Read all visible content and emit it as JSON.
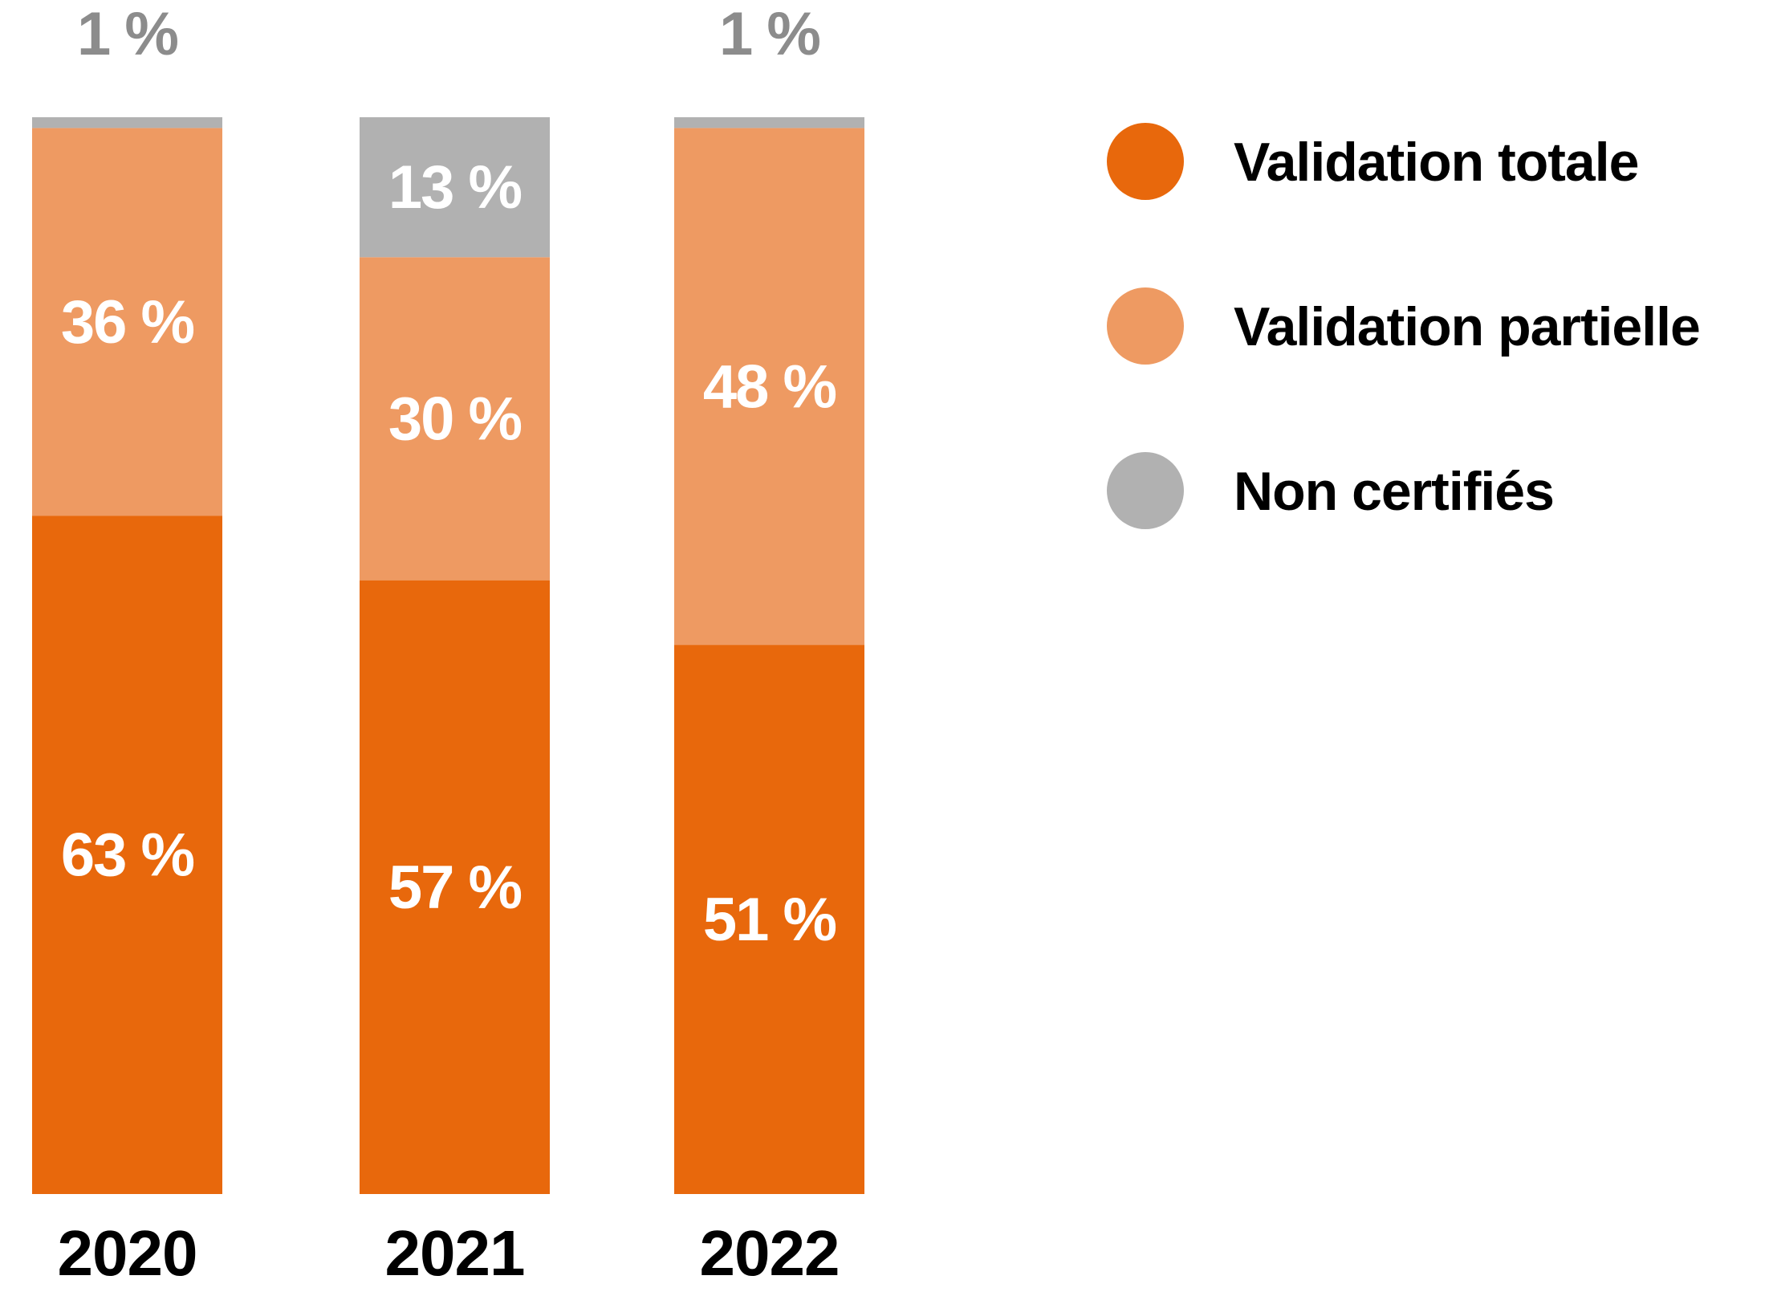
{
  "chart_data": {
    "type": "bar",
    "stacked": true,
    "categories": [
      "2020",
      "2021",
      "2022"
    ],
    "series": [
      {
        "name": "Validation totale",
        "values": [
          63,
          57,
          51
        ],
        "color": "#e8680c"
      },
      {
        "name": "Validation partielle",
        "values": [
          36,
          30,
          48
        ],
        "color": "#ee9a62"
      },
      {
        "name": "Non certifiés",
        "values": [
          1,
          13,
          1
        ],
        "color": "#b1b1b1"
      }
    ],
    "data_labels": [
      [
        "63 %",
        "57 %",
        "51 %"
      ],
      [
        "36 %",
        "30 %",
        "48 %"
      ],
      [
        "1 %",
        "13 %",
        "1 %"
      ]
    ],
    "title": "",
    "xlabel": "",
    "ylabel": "",
    "ylim": [
      0,
      100
    ],
    "grid": false,
    "legend_position": "right",
    "label_color_inside": "#ffffff",
    "label_color_above": "#8c8c8c"
  }
}
